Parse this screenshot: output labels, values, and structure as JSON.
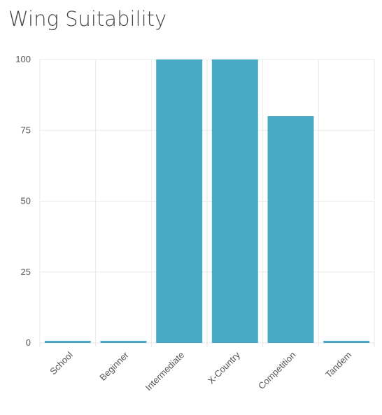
{
  "chart_data": {
    "type": "bar",
    "title": "Wing Suitability",
    "categories": [
      "School",
      "Beginner",
      "Intermediate",
      "X-Country",
      "Competition",
      "Tandem"
    ],
    "values": [
      0,
      0,
      100,
      100,
      80,
      0
    ],
    "ylim": [
      0,
      100
    ],
    "yticks": [
      0,
      25,
      50,
      75,
      100
    ],
    "xlabel": "",
    "ylabel": "",
    "grid": true,
    "bar_color": "#4aaac5"
  }
}
